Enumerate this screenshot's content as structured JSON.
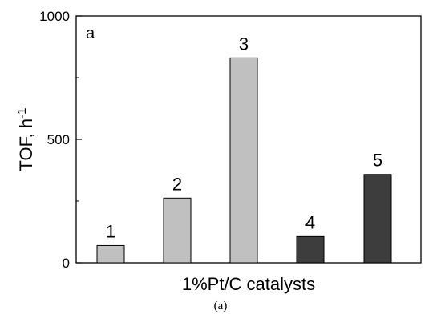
{
  "chart_data": {
    "type": "bar",
    "panel_label": "a",
    "categories": [
      "1",
      "2",
      "3",
      "4",
      "5"
    ],
    "values": [
      70,
      262,
      830,
      106,
      358
    ],
    "bar_colors": [
      "#c0c0c0",
      "#c0c0c0",
      "#c0c0c0",
      "#3d3d3d",
      "#3d3d3d"
    ],
    "xlabel": "1%Pt/C catalysts",
    "ylabel": {
      "base": "TOF, h",
      "sup": "-1"
    },
    "ylim": [
      0,
      1000
    ],
    "yticks": [
      "0",
      "500",
      "1000"
    ],
    "grid": false
  },
  "caption": "(a)"
}
